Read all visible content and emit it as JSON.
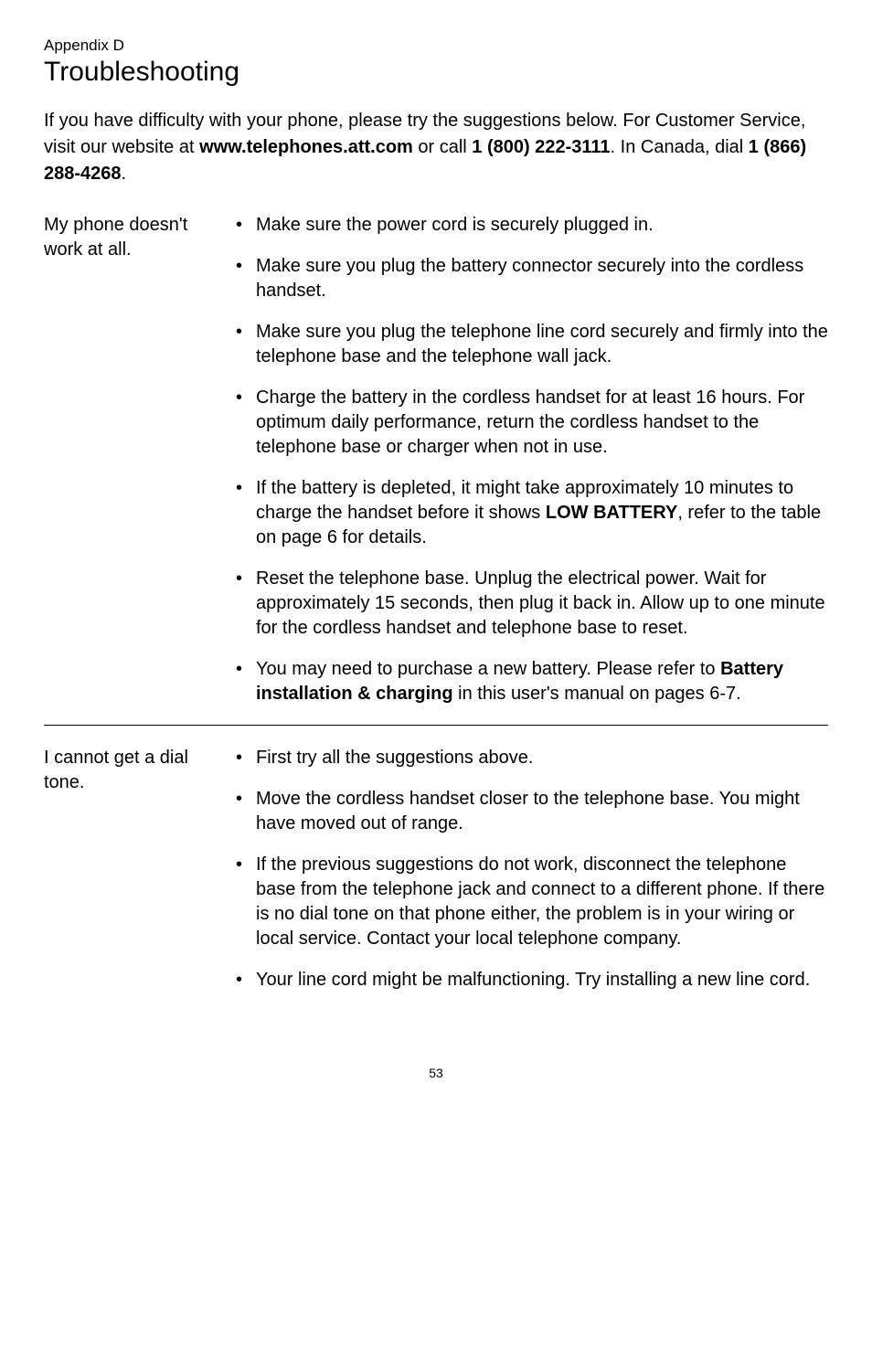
{
  "appendix_label": "Appendix D",
  "page_title": "Troubleshooting",
  "intro_parts": {
    "t1": "If you have difficulty with your phone, please try the suggestions below. For Customer Service, visit our website at ",
    "b1": "www.telephones.att.com",
    "t2": " or call ",
    "b2": "1 (800) 222-3111",
    "t3": ". In Canada, dial ",
    "b3": "1 (866) 288-4268",
    "t4": "."
  },
  "section1": {
    "heading": "My phone doesn't work at all.",
    "bullets": {
      "b1": "Make sure the power cord is securely plugged in.",
      "b2": "Make sure you plug the battery connector securely into the cordless handset.",
      "b3": "Make sure you plug the telephone line cord securely and firmly into the telephone base and the telephone wall jack.",
      "b4": "Charge the battery in the cordless handset for at least 16 hours. For optimum daily performance, return the cordless handset to the telephone base or charger when not in use.",
      "b5_a": "If the battery is depleted, it might take approximately 10 minutes to charge the handset before it shows ",
      "b5_bold": "LOW BATTERY",
      "b5_c": ", refer to the table on page 6 for details.",
      "b6": "Reset the telephone base. Unplug the electrical power. Wait for approximately 15 seconds, then plug it back in. Allow up to one minute for the cordless handset and telephone base to reset.",
      "b7_a": "You may need to purchase a new battery. Please refer to ",
      "b7_bold": "Battery installation & charging",
      "b7_c": " in this user's manual on pages 6-7."
    }
  },
  "section2": {
    "heading": "I cannot get a dial tone.",
    "bullets": {
      "b1": "First try all the suggestions above.",
      "b2": "Move the cordless handset closer to the telephone base. You might have moved out of range.",
      "b3": "If the previous suggestions do not work, disconnect the telephone base from the telephone jack and connect to a different phone. If there is no dial tone on that phone either, the problem is in your wiring or local service. Contact your local telephone company.",
      "b4": "Your line cord might be malfunctioning. Try installing a new line cord."
    }
  },
  "page_number": "53"
}
